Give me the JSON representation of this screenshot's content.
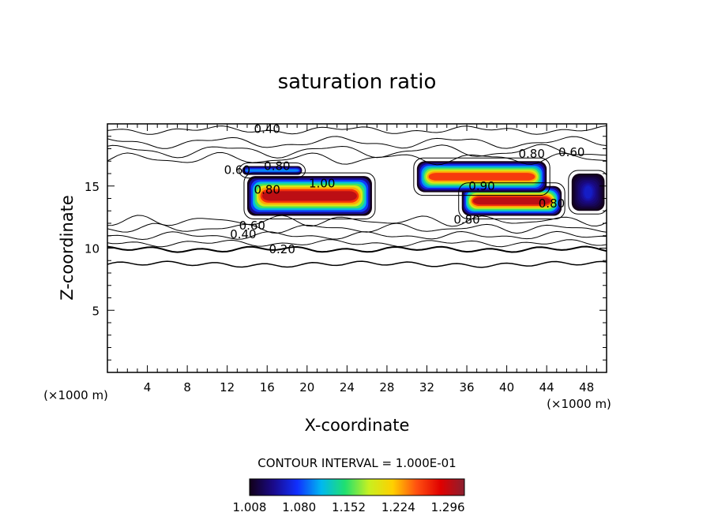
{
  "chart_data": {
    "type": "heatmap",
    "title": "saturation ratio",
    "xlabel": "X-coordinate",
    "ylabel": "Z-coordinate",
    "x_unit": "(×1000 m)",
    "z_unit": "(×1000 m)",
    "xlim": [
      0,
      50
    ],
    "ylim": [
      0,
      20
    ],
    "x_ticks": [
      4,
      8,
      12,
      16,
      20,
      24,
      28,
      32,
      36,
      40,
      44,
      48
    ],
    "y_ticks": [
      5,
      10,
      15
    ],
    "contour_interval_text": "CONTOUR INTERVAL = 1.000E-01",
    "contour_labels": [
      {
        "text": "0.40",
        "x": 16.0,
        "z": 19.6
      },
      {
        "text": "0.80",
        "x": 42.5,
        "z": 17.6
      },
      {
        "text": "0.60",
        "x": 46.5,
        "z": 17.7
      },
      {
        "text": "0.60",
        "x": 13.0,
        "z": 16.3
      },
      {
        "text": "0.80",
        "x": 17.0,
        "z": 16.6
      },
      {
        "text": "1.00",
        "x": 21.5,
        "z": 15.2
      },
      {
        "text": "0.80",
        "x": 16.0,
        "z": 14.7
      },
      {
        "text": "0.60",
        "x": 14.5,
        "z": 11.8
      },
      {
        "text": "0.40",
        "x": 13.6,
        "z": 11.1
      },
      {
        "text": "0.20",
        "x": 17.5,
        "z": 9.9
      },
      {
        "text": "0.80",
        "x": 36.0,
        "z": 12.3
      },
      {
        "text": "0.90",
        "x": 37.5,
        "z": 15.0
      },
      {
        "text": "0.80",
        "x": 44.5,
        "z": 13.6
      }
    ],
    "supersaturated_regions": [
      {
        "x_range": [
          14.0,
          26.5
        ],
        "z_range": [
          12.6,
          15.8
        ],
        "peak": 1.3
      },
      {
        "x_range": [
          35.5,
          45.5
        ],
        "z_range": [
          12.6,
          15.0
        ],
        "peak": 1.3
      },
      {
        "x_range": [
          31.0,
          44.0
        ],
        "z_range": [
          14.5,
          17.0
        ],
        "peak": 1.26
      },
      {
        "x_range": [
          13.5,
          19.5
        ],
        "z_range": [
          15.9,
          16.6
        ],
        "peak": 1.1
      },
      {
        "x_range": [
          46.5,
          49.8
        ],
        "z_range": [
          13.0,
          16.0
        ],
        "peak": 1.06
      }
    ],
    "colorbar": {
      "ticks": [
        "1.008",
        "1.080",
        "1.152",
        "1.224",
        "1.296"
      ],
      "min": 1.008,
      "max": 1.32,
      "colormap": [
        "#120018",
        "#1a0a8a",
        "#1030ff",
        "#00b8f0",
        "#20e070",
        "#c8f020",
        "#ffd000",
        "#ff5010",
        "#e00000",
        "#8a2030"
      ]
    }
  }
}
